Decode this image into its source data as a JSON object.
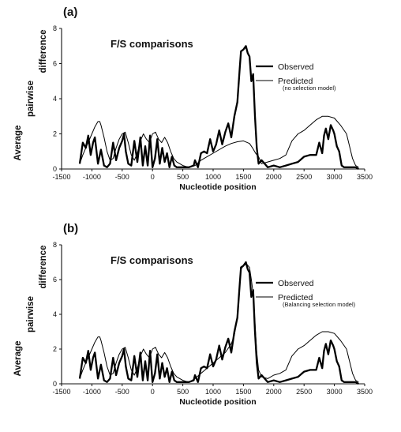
{
  "figure": {
    "y_axis_label_words": [
      "Average",
      "pairwise",
      "difference"
    ]
  },
  "chart_data": [
    {
      "type": "line",
      "panel_label": "(a)",
      "title": "F/S comparisons",
      "xlabel": "Nucleotide position",
      "ylabel": "Average pairwise difference",
      "xlim": [
        -1500,
        3500
      ],
      "ylim": [
        0,
        8
      ],
      "x_ticks": [
        -1500,
        -1000,
        -500,
        0,
        500,
        1000,
        1500,
        2000,
        2500,
        3000,
        3500
      ],
      "y_ticks": [
        0,
        2,
        4,
        6,
        8
      ],
      "legend": {
        "placement": "top-right",
        "note": "(no selection model)"
      },
      "series": [
        {
          "name": "Observed",
          "color": "#000000",
          "style": "thick",
          "x": [
            -1200,
            -1150,
            -1100,
            -1060,
            -1020,
            -980,
            -950,
            -900,
            -850,
            -800,
            -750,
            -700,
            -650,
            -600,
            -550,
            -500,
            -470,
            -440,
            -400,
            -350,
            -300,
            -250,
            -200,
            -160,
            -120,
            -80,
            -40,
            0,
            40,
            80,
            120,
            160,
            200,
            240,
            280,
            320,
            360,
            400,
            500,
            600,
            680,
            700,
            750,
            800,
            850,
            900,
            950,
            1000,
            1050,
            1100,
            1150,
            1200,
            1250,
            1300,
            1350,
            1400,
            1440,
            1460,
            1500,
            1540,
            1570,
            1600,
            1630,
            1660,
            1690,
            1720,
            1750,
            1800,
            1850,
            1900,
            2000,
            2100,
            2200,
            2300,
            2400,
            2500,
            2600,
            2700,
            2750,
            2800,
            2830,
            2860,
            2900,
            2940,
            2980,
            3000,
            3040,
            3080,
            3120,
            3160,
            3200,
            3250,
            3300,
            3350,
            3400
          ],
          "y": [
            0.3,
            1.5,
            1.2,
            1.9,
            0.8,
            1.5,
            1.8,
            0.3,
            1.1,
            0.2,
            0.1,
            0.3,
            1.5,
            0.5,
            1.2,
            1.6,
            2.0,
            1.0,
            0.3,
            0.2,
            1.6,
            0.4,
            1.8,
            0.2,
            1.3,
            0.2,
            1.9,
            0.1,
            0.6,
            1.7,
            0.3,
            1.2,
            0.4,
            0.9,
            0.1,
            0.7,
            0.2,
            0.1,
            0.1,
            0.1,
            0.2,
            0.5,
            0.1,
            0.9,
            1.0,
            0.9,
            1.7,
            1.0,
            1.4,
            2.2,
            1.4,
            2.1,
            2.6,
            1.8,
            3.0,
            3.8,
            5.8,
            6.7,
            6.8,
            7.0,
            6.6,
            6.4,
            5.0,
            5.4,
            3.0,
            1.2,
            0.3,
            0.5,
            0.3,
            0.1,
            0.2,
            0.1,
            0.2,
            0.3,
            0.4,
            0.7,
            0.8,
            0.8,
            1.5,
            0.9,
            1.9,
            2.3,
            1.7,
            2.5,
            2.2,
            2.0,
            1.3,
            1.0,
            0.2,
            0.1,
            0.1,
            0.1,
            0.1,
            0.1,
            0.0
          ]
        },
        {
          "name": "Predicted",
          "color": "#000000",
          "style": "thin",
          "x": [
            -1200,
            -1150,
            -1100,
            -1050,
            -1000,
            -950,
            -900,
            -870,
            -850,
            -800,
            -750,
            -700,
            -650,
            -600,
            -550,
            -500,
            -450,
            -400,
            -350,
            -300,
            -250,
            -200,
            -150,
            -100,
            -50,
            0,
            50,
            100,
            150,
            200,
            250,
            300,
            350,
            400,
            450,
            500,
            550,
            600,
            700,
            800,
            900,
            1000,
            1100,
            1200,
            1300,
            1400,
            1500,
            1600,
            1650,
            1700,
            1750,
            1800,
            1900,
            2000,
            2100,
            2200,
            2250,
            2300,
            2350,
            2400,
            2450,
            2500,
            2600,
            2700,
            2800,
            2900,
            3000,
            3100,
            3200,
            3250,
            3300,
            3350,
            3400
          ],
          "y": [
            0.3,
            0.8,
            1.2,
            1.6,
            2.0,
            2.4,
            2.7,
            2.7,
            2.5,
            1.8,
            1.0,
            0.5,
            0.6,
            1.2,
            1.7,
            2.0,
            2.1,
            1.5,
            0.8,
            0.5,
            0.9,
            1.6,
            2.0,
            1.7,
            1.5,
            2.0,
            2.1,
            1.7,
            1.5,
            1.8,
            1.5,
            1.0,
            0.6,
            0.4,
            0.3,
            0.2,
            0.15,
            0.1,
            0.2,
            0.5,
            0.7,
            0.9,
            1.1,
            1.3,
            1.45,
            1.55,
            1.6,
            1.45,
            1.2,
            0.9,
            0.7,
            0.3,
            0.4,
            0.5,
            0.6,
            0.8,
            1.2,
            1.6,
            1.8,
            2.0,
            2.1,
            2.2,
            2.5,
            2.8,
            3.0,
            3.0,
            2.9,
            2.5,
            2.0,
            1.3,
            0.6,
            0.2,
            0.1
          ]
        }
      ]
    },
    {
      "type": "line",
      "panel_label": "(b)",
      "title": "F/S comparisons",
      "xlabel": "Nucleotide position",
      "ylabel": "Average pairwise difference",
      "xlim": [
        -1500,
        3500
      ],
      "ylim": [
        0,
        8
      ],
      "x_ticks": [
        -1500,
        -1000,
        -500,
        0,
        500,
        1000,
        1500,
        2000,
        2500,
        3000,
        3500
      ],
      "y_ticks": [
        0,
        2,
        4,
        6,
        8
      ],
      "legend": {
        "placement": "top-right",
        "note": "(Balancing selection model)"
      },
      "series": [
        {
          "name": "Observed",
          "color": "#000000",
          "style": "thick",
          "x": [
            -1200,
            -1150,
            -1100,
            -1060,
            -1020,
            -980,
            -950,
            -900,
            -850,
            -800,
            -750,
            -700,
            -650,
            -600,
            -550,
            -500,
            -470,
            -440,
            -400,
            -350,
            -300,
            -250,
            -200,
            -160,
            -120,
            -80,
            -40,
            0,
            40,
            80,
            120,
            160,
            200,
            240,
            280,
            320,
            360,
            400,
            500,
            600,
            680,
            700,
            750,
            800,
            850,
            900,
            950,
            1000,
            1050,
            1100,
            1150,
            1200,
            1250,
            1300,
            1350,
            1400,
            1440,
            1460,
            1500,
            1540,
            1570,
            1600,
            1630,
            1660,
            1690,
            1720,
            1750,
            1800,
            1850,
            1900,
            2000,
            2100,
            2200,
            2300,
            2400,
            2500,
            2600,
            2700,
            2750,
            2800,
            2830,
            2860,
            2900,
            2940,
            2980,
            3000,
            3040,
            3080,
            3120,
            3160,
            3200,
            3250,
            3300,
            3350,
            3400
          ],
          "y": [
            0.3,
            1.5,
            1.2,
            1.9,
            0.8,
            1.5,
            1.8,
            0.3,
            1.1,
            0.2,
            0.1,
            0.3,
            1.5,
            0.5,
            1.2,
            1.6,
            2.0,
            1.0,
            0.3,
            0.2,
            1.6,
            0.4,
            1.8,
            0.2,
            1.3,
            0.2,
            1.9,
            0.1,
            0.6,
            1.7,
            0.3,
            1.2,
            0.4,
            0.9,
            0.1,
            0.7,
            0.2,
            0.1,
            0.1,
            0.1,
            0.2,
            0.5,
            0.1,
            0.9,
            1.0,
            0.9,
            1.7,
            1.0,
            1.4,
            2.2,
            1.4,
            2.1,
            2.6,
            1.8,
            3.0,
            3.8,
            5.8,
            6.7,
            6.8,
            7.0,
            6.6,
            6.4,
            5.0,
            5.4,
            3.0,
            1.2,
            0.3,
            0.5,
            0.3,
            0.1,
            0.2,
            0.1,
            0.2,
            0.3,
            0.4,
            0.7,
            0.8,
            0.8,
            1.5,
            0.9,
            1.9,
            2.3,
            1.7,
            2.5,
            2.2,
            2.0,
            1.3,
            1.0,
            0.2,
            0.1,
            0.1,
            0.1,
            0.1,
            0.1,
            0.0
          ]
        },
        {
          "name": "Predicted",
          "color": "#000000",
          "style": "thin",
          "x": [
            -1200,
            -1150,
            -1100,
            -1050,
            -1000,
            -950,
            -900,
            -870,
            -850,
            -800,
            -750,
            -700,
            -650,
            -600,
            -550,
            -500,
            -450,
            -400,
            -350,
            -300,
            -250,
            -200,
            -150,
            -100,
            -50,
            0,
            50,
            100,
            150,
            200,
            250,
            300,
            350,
            400,
            450,
            500,
            550,
            600,
            700,
            800,
            900,
            1000,
            1100,
            1200,
            1300,
            1350,
            1400,
            1430,
            1460,
            1500,
            1550,
            1600,
            1630,
            1660,
            1690,
            1720,
            1750,
            1800,
            1900,
            2000,
            2100,
            2200,
            2250,
            2300,
            2350,
            2400,
            2450,
            2500,
            2600,
            2700,
            2800,
            2900,
            3000,
            3100,
            3200,
            3250,
            3300,
            3350,
            3400
          ],
          "y": [
            0.3,
            0.8,
            1.2,
            1.6,
            2.0,
            2.4,
            2.7,
            2.7,
            2.5,
            1.8,
            1.0,
            0.5,
            0.6,
            1.2,
            1.7,
            2.0,
            2.1,
            1.5,
            0.8,
            0.5,
            0.9,
            1.6,
            2.0,
            1.7,
            1.5,
            2.0,
            2.1,
            1.7,
            1.5,
            1.8,
            1.5,
            1.0,
            0.6,
            0.4,
            0.3,
            0.2,
            0.15,
            0.1,
            0.3,
            0.6,
            0.9,
            1.2,
            1.5,
            1.8,
            2.3,
            2.8,
            3.8,
            5.5,
            6.6,
            6.8,
            6.9,
            6.7,
            6.0,
            5.2,
            3.5,
            1.8,
            0.8,
            0.4,
            0.3,
            0.5,
            0.6,
            0.8,
            1.2,
            1.6,
            1.8,
            2.0,
            2.1,
            2.2,
            2.5,
            2.8,
            3.0,
            3.0,
            2.9,
            2.5,
            2.0,
            1.3,
            0.6,
            0.2,
            0.1
          ]
        }
      ]
    }
  ]
}
